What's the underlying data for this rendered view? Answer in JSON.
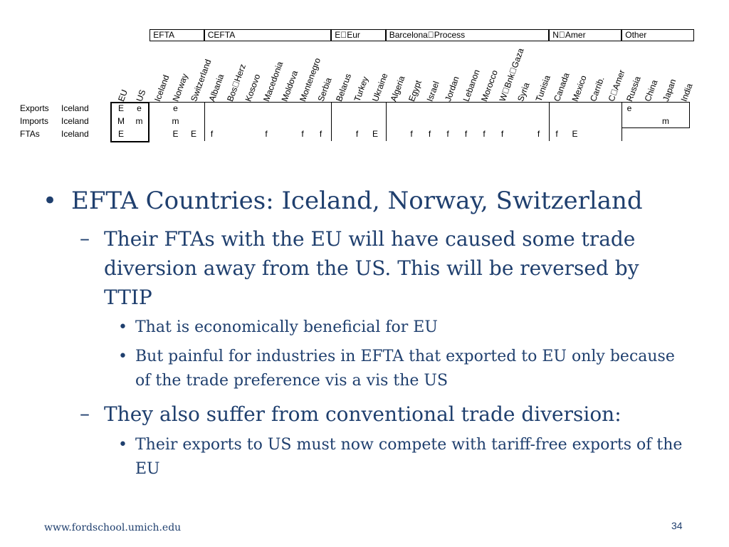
{
  "table": {
    "groups": [
      "EFTA",
      "CEFTA",
      "E\u0000Eur",
      "Barcelona\u0000Process",
      "N\u0000Amer",
      "Other"
    ],
    "columns": [
      "EU",
      "US",
      "Iceland",
      "Norway",
      "Switzerland",
      "Albania",
      "Bos\u0000Herz",
      "Kosovo",
      "Macedonia",
      "Moldova",
      "Montenegro",
      "Serbia",
      "Belarus",
      "Turkey",
      "Ukraine",
      "Algeria",
      "Egypt",
      "Israel",
      "Jordan",
      "Lebanon",
      "Morocco",
      "W\u0000Bnk\u0000Gaza",
      "Syria",
      "Tunisia",
      "Canada",
      "Mexico",
      "Carrib.",
      "C\u0000Amer",
      "Russia",
      "China",
      "Japan",
      "India"
    ],
    "rows": [
      {
        "label": "Exports",
        "country": "Iceland",
        "cells": {
          "EU": "E",
          "US": "e",
          "Norway": "e",
          "Russia": "e"
        }
      },
      {
        "label": "Imports",
        "country": "Iceland",
        "cells": {
          "EU": "M",
          "US": "m",
          "Norway": "m",
          "Japan": "m"
        }
      },
      {
        "label": "FTAs",
        "country": "Iceland",
        "cells": {
          "EU": "E",
          "Norway": "E",
          "Switzerland": "E",
          "Albania": "f",
          "Macedonia": "f",
          "Montenegro": "f",
          "Serbia": "f",
          "Turkey": "f",
          "Ukraine": "E",
          "Egypt": "f",
          "Israel": "f",
          "Jordan": "f",
          "Lebanon": "f",
          "Morocco": "f",
          "W\u0000Bnk\u0000Gaza": "f",
          "Tunisia": "f",
          "Canada": "f",
          "Mexico": "E"
        }
      }
    ]
  },
  "bullets": {
    "l1": "EFTA Countries:  Iceland, Norway, Switzerland",
    "l2a": "Their FTAs with the EU will have caused some trade diversion away from the US.  This will be reversed by TTIP",
    "l3a": "That is economically beneficial for EU",
    "l3b": "But painful for industries in EFTA that exported to EU only because of the trade preference vis a vis the US",
    "l2b": "They also suffer from conventional trade diversion:",
    "l3c": "Their exports to US must now compete with tariff-free exports of the EU"
  },
  "footer": {
    "url": "www.fordschool.umich.edu",
    "page": "34"
  },
  "colors": {
    "text": "#1f3f6e"
  }
}
